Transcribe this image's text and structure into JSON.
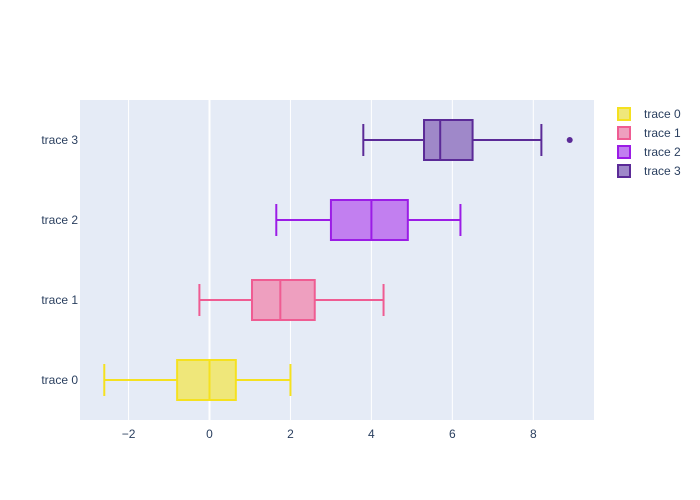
{
  "chart_data": {
    "type": "box",
    "orientation": "horizontal",
    "xlim": [
      -3.2,
      9.5
    ],
    "x_ticks": [
      -2,
      0,
      2,
      4,
      6,
      8
    ],
    "x_tick_labels": [
      "−2",
      "0",
      "2",
      "4",
      "6",
      "8"
    ],
    "categories": [
      "trace 0",
      "trace 1",
      "trace 2",
      "trace 3"
    ],
    "grid": true,
    "legend_position": "top-right",
    "series": [
      {
        "name": "trace 0",
        "color": "#f0e442",
        "stroke": "#f5e11f",
        "fill": "#efe77a",
        "whisker_low": -2.6,
        "q1": -0.8,
        "median": 0.0,
        "q3": 0.65,
        "whisker_high": 2.0,
        "outliers": []
      },
      {
        "name": "trace 1",
        "color": "#ef5c92",
        "stroke": "#ef5c92",
        "fill": "#ee9fbf",
        "whisker_low": -0.25,
        "q1": 1.05,
        "median": 1.75,
        "q3": 2.6,
        "whisker_high": 4.3,
        "outliers": []
      },
      {
        "name": "trace 2",
        "color": "#9b1ce6",
        "stroke": "#9b1ce6",
        "fill": "#c27ff0",
        "whisker_low": 1.65,
        "q1": 3.0,
        "median": 4.0,
        "q3": 4.9,
        "whisker_high": 6.2,
        "outliers": []
      },
      {
        "name": "trace 3",
        "color": "#5b2a97",
        "stroke": "#5b2a97",
        "fill": "#9f88c9",
        "whisker_low": 3.8,
        "q1": 5.3,
        "median": 5.7,
        "q3": 6.5,
        "whisker_high": 8.2,
        "outliers": [
          8.9
        ]
      }
    ]
  }
}
